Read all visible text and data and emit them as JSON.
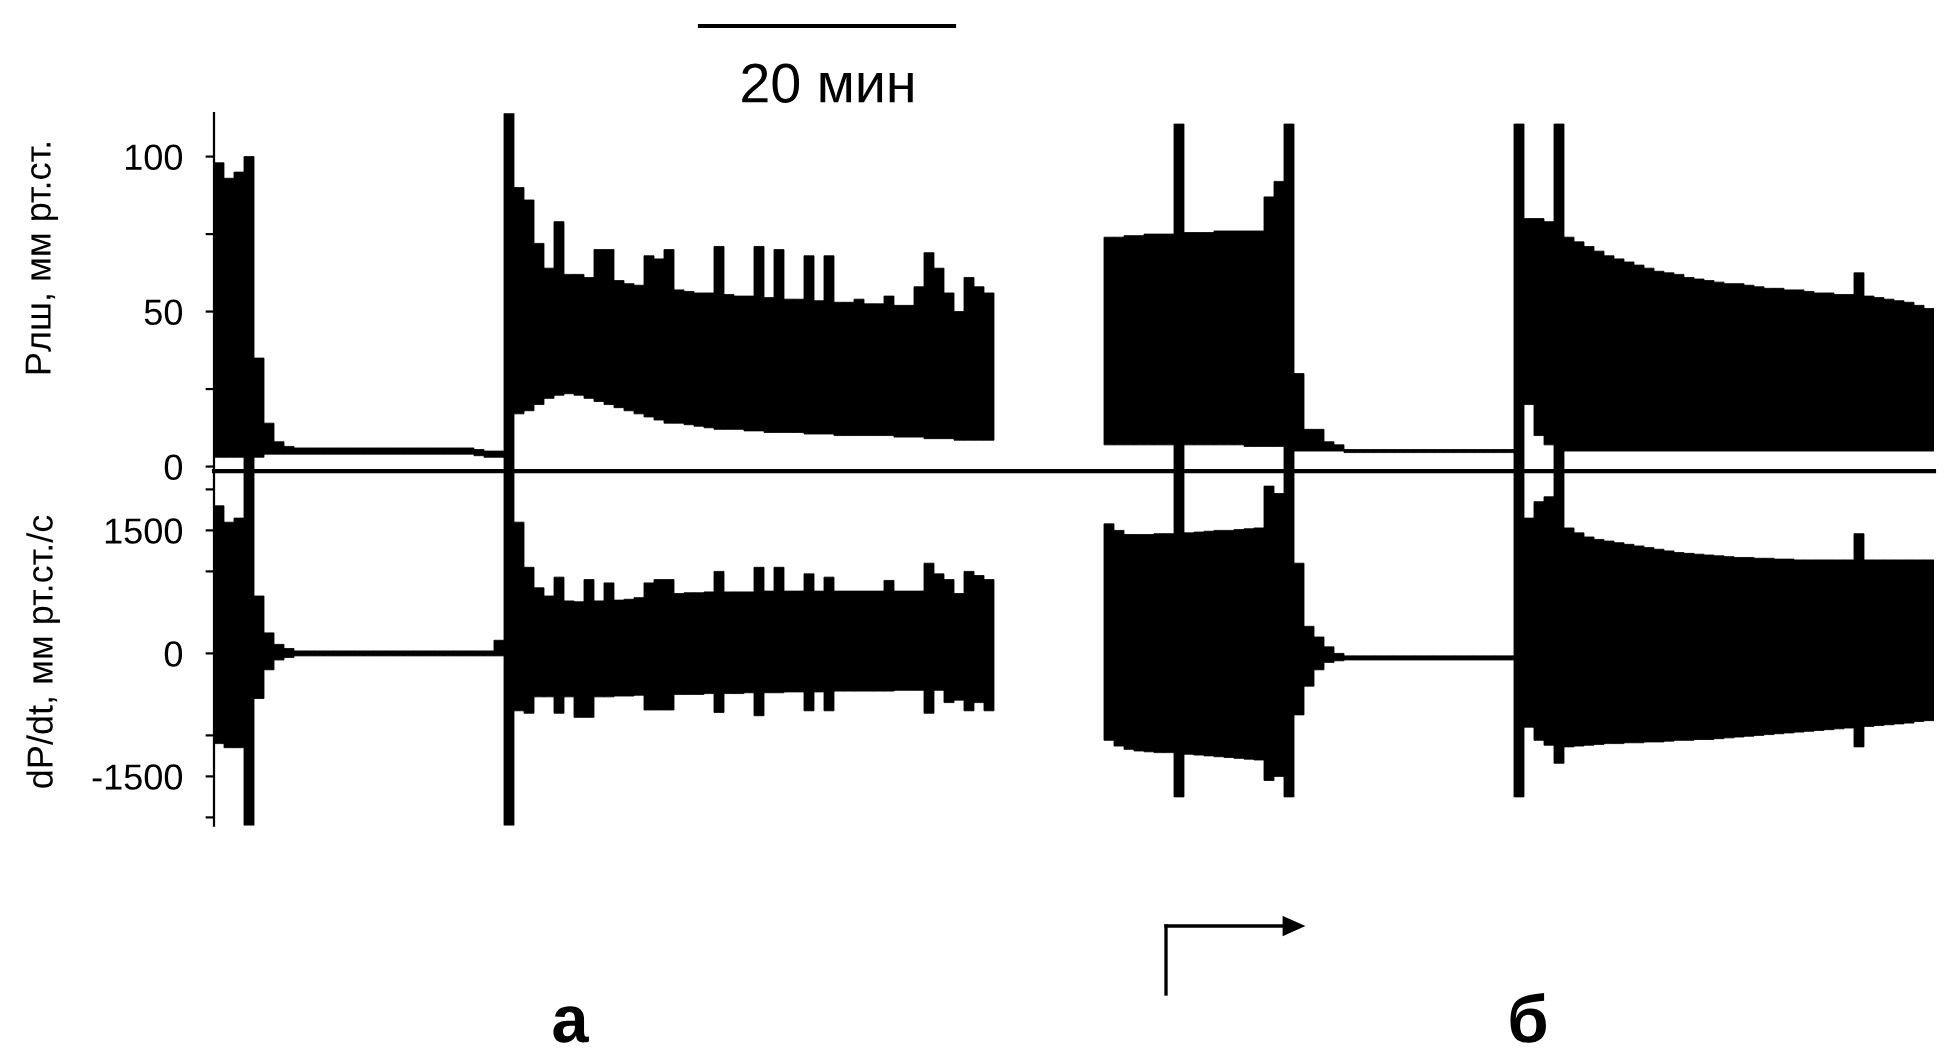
{
  "chart_data": [
    {
      "type": "bar",
      "ylabel": "Рлш, мм рт.ст.",
      "annotations": [
        "20 мин"
      ],
      "color": "#000000",
      "tick_labels": "y",
      "ylim": [
        -1.5,
        114
      ],
      "yticks": [
        0,
        {
          "value": 25,
          "label": null
        },
        50,
        {
          "value": 75,
          "label": null
        },
        100
      ],
      "categories": [
        null,
        null,
        null,
        null,
        null,
        null,
        null,
        null,
        null,
        null,
        null,
        null,
        null,
        null,
        null,
        null,
        null,
        null,
        null,
        null,
        null,
        null,
        null,
        null,
        null,
        null,
        null,
        null,
        null,
        null,
        null,
        null,
        null,
        null,
        null,
        null,
        null,
        null,
        null,
        null,
        null,
        null,
        null,
        null,
        null,
        null,
        null,
        null,
        null,
        null,
        null,
        null,
        null,
        null,
        null,
        null,
        null,
        null,
        null,
        null,
        null,
        null,
        null,
        null,
        null,
        null,
        null,
        null,
        null,
        null,
        null,
        null,
        null,
        null,
        null,
        null,
        null,
        null,
        null,
        null,
        null,
        null,
        null,
        null,
        null,
        null,
        null,
        null,
        null,
        null,
        null,
        null,
        null,
        null,
        null,
        null,
        null,
        null,
        null,
        null,
        null,
        null,
        null,
        null,
        null,
        null,
        null,
        null,
        null,
        null,
        null,
        null,
        null,
        null,
        null,
        null,
        null,
        null,
        null,
        null,
        null,
        null,
        null,
        null,
        null,
        null,
        null,
        null,
        null,
        null,
        null,
        null,
        null,
        null,
        null,
        null,
        null,
        null,
        null,
        null,
        null,
        null,
        null,
        null,
        null,
        null,
        null,
        null,
        null,
        null,
        null,
        null,
        null,
        null,
        null,
        null,
        null,
        null,
        null,
        null,
        null,
        null,
        null,
        null,
        null,
        null,
        null,
        null,
        null,
        null,
        null,
        null
      ],
      "base": [
        3,
        3,
        3,
        -1.5,
        3,
        4,
        4,
        4,
        4,
        4,
        4,
        4,
        4,
        4,
        4,
        4,
        4,
        4,
        4,
        4,
        4,
        4,
        4,
        4,
        4,
        4,
        3.5,
        3,
        3,
        -1.5,
        17,
        18,
        20,
        22,
        23,
        23.5,
        23,
        22,
        21,
        20,
        19,
        18,
        17,
        16,
        15,
        14,
        14,
        13.5,
        13,
        12.5,
        12,
        12,
        12,
        11.5,
        11.5,
        11,
        11,
        11,
        11,
        10.5,
        10.5,
        10.5,
        10,
        10,
        10,
        10,
        10,
        10,
        9.5,
        9.5,
        9.5,
        9,
        9,
        9,
        8.5,
        8.5,
        8.5,
        8.5,
        null,
        null,
        null,
        null,
        null,
        null,
        null,
        null,
        null,
        null,
        null,
        7,
        7,
        7,
        7,
        7,
        7,
        7,
        -1.5,
        7,
        7,
        7,
        7,
        7,
        7,
        6.5,
        6.5,
        6.5,
        6.5,
        -1.5,
        5,
        5,
        5,
        5,
        5,
        4.5,
        4.5,
        4.5,
        4.5,
        4.5,
        4.5,
        4.5,
        4.5,
        4.5,
        4.5,
        4.5,
        4.5,
        4.5,
        4.5,
        4.5,
        4.5,
        4.5,
        -1.5,
        20,
        10,
        7,
        -1.5,
        5,
        5,
        5,
        5,
        5,
        5,
        5,
        5,
        5,
        5,
        5,
        5,
        5,
        5,
        5,
        5,
        5,
        5,
        5,
        5,
        5,
        5,
        5,
        5,
        5,
        5,
        5,
        5,
        5,
        5,
        5,
        5,
        5,
        5,
        5,
        5,
        5
      ],
      "values": [
        95,
        90,
        92,
        101.5,
        32,
        10,
        4,
        2.5,
        2,
        2,
        2,
        2,
        2,
        2,
        2,
        2,
        2,
        2,
        2,
        2,
        2,
        2,
        2,
        2,
        2,
        2,
        2,
        2,
        2,
        115.5,
        73,
        68,
        52,
        42,
        56,
        38.5,
        39,
        39,
        49,
        50,
        41,
        41,
        41.5,
        52,
        52,
        56,
        43,
        43,
        43,
        43.5,
        59,
        43.5,
        43,
        43.5,
        59.5,
        43.5,
        59,
        43,
        43,
        57.5,
        43,
        57.5,
        43,
        43,
        44,
        42.5,
        42.5,
        45,
        42.5,
        42.5,
        48.5,
        60,
        55,
        47,
        41.5,
        52.5,
        49.5,
        47.5,
        null,
        null,
        null,
        null,
        null,
        null,
        null,
        null,
        null,
        null,
        null,
        67,
        67,
        67.5,
        67.5,
        68,
        68,
        68,
        112,
        68.5,
        68.5,
        68.5,
        69,
        69,
        69,
        69.5,
        69.5,
        80.5,
        85.5,
        112,
        25,
        7,
        7,
        3,
        2,
        1,
        1,
        1,
        1,
        1,
        1,
        1,
        1,
        1,
        1,
        1,
        1,
        1,
        1,
        1,
        1,
        1,
        112,
        60,
        70,
        72,
        112,
        69,
        67.5,
        66,
        64.5,
        63,
        62,
        61,
        60,
        59,
        58,
        57.5,
        57,
        56,
        55.5,
        55,
        54.5,
        54,
        54,
        53.5,
        53,
        52.5,
        52.5,
        52,
        52,
        51.5,
        51,
        51,
        50.5,
        50.5,
        57.5,
        50,
        49.5,
        49,
        48.5,
        48,
        47,
        46
      ]
    },
    {
      "type": "bar",
      "ylabel": "dP/dt, мм рт.ст./с",
      "annotations": [
        "а",
        "б"
      ],
      "color": "#000000",
      "tick_labels": "y",
      "ylim": [
        -2100,
        2200
      ],
      "yticks": [
        {
          "value": -2000,
          "label": null
        },
        -1500,
        {
          "value": -1000,
          "label": null
        },
        0,
        {
          "value": 1000,
          "label": null
        },
        1500,
        {
          "value": 2000,
          "label": null
        }
      ],
      "categories": [
        null,
        null,
        null,
        null,
        null,
        null,
        null,
        null,
        null,
        null,
        null,
        null,
        null,
        null,
        null,
        null,
        null,
        null,
        null,
        null,
        null,
        null,
        null,
        null,
        null,
        null,
        null,
        null,
        null,
        null,
        null,
        null,
        null,
        null,
        null,
        null,
        null,
        null,
        null,
        null,
        null,
        null,
        null,
        null,
        null,
        null,
        null,
        null,
        null,
        null,
        null,
        null,
        null,
        null,
        null,
        null,
        null,
        null,
        null,
        null,
        null,
        null,
        null,
        null,
        null,
        null,
        null,
        null,
        null,
        null,
        null,
        null,
        null,
        null,
        null,
        null,
        null,
        null,
        null,
        null,
        null,
        null,
        null,
        null,
        null,
        null,
        null,
        null,
        null,
        null,
        null,
        null,
        null,
        null,
        null,
        null,
        null,
        null,
        null,
        null,
        null,
        null,
        null,
        null,
        null,
        null,
        null,
        null,
        null,
        null,
        null,
        null,
        null,
        null,
        null,
        null,
        null,
        null,
        null,
        null,
        null,
        null,
        null,
        null,
        null,
        null,
        null,
        null,
        null,
        null,
        null,
        null,
        null,
        null,
        null,
        null,
        null,
        null,
        null,
        null,
        null,
        null,
        null,
        null,
        null,
        null,
        null,
        null,
        null,
        null,
        null,
        null,
        null,
        null,
        null,
        null,
        null,
        null,
        null,
        null,
        null,
        null,
        null,
        null,
        null,
        null,
        null,
        null,
        null,
        null,
        null,
        null
      ],
      "base": [
        -1100,
        -1150,
        -1150,
        -2100,
        -550,
        -200,
        -80,
        -50,
        -30,
        -30,
        -30,
        -30,
        -30,
        -30,
        -30,
        -30,
        -30,
        -30,
        -30,
        -30,
        -30,
        -30,
        -30,
        -30,
        -30,
        -30,
        -30,
        -30,
        -30,
        -2100,
        -700,
        -730,
        -530,
        -530,
        -730,
        -530,
        -780,
        -780,
        -530,
        -530,
        -520,
        -520,
        -510,
        -690,
        -690,
        -690,
        -500,
        -500,
        -500,
        -490,
        -720,
        -490,
        -490,
        -480,
        -760,
        -480,
        -480,
        -470,
        -470,
        -700,
        -470,
        -700,
        -460,
        -460,
        -460,
        -460,
        -460,
        -460,
        -450,
        -450,
        -450,
        -730,
        -450,
        -600,
        -570,
        -700,
        -600,
        -700,
        null,
        null,
        null,
        null,
        null,
        null,
        null,
        null,
        null,
        null,
        null,
        -1060,
        -1130,
        -1170,
        -1190,
        -1200,
        -1210,
        -1210,
        -1750,
        -1230,
        -1240,
        -1250,
        -1260,
        -1270,
        -1280,
        -1290,
        -1300,
        -1550,
        -1500,
        -1750,
        -750,
        -400,
        -200,
        -110,
        -90,
        -80,
        -80,
        -80,
        -80,
        -80,
        -80,
        -80,
        -80,
        -80,
        -80,
        -80,
        -80,
        -80,
        -80,
        -80,
        -80,
        -80,
        -1750,
        -900,
        -1060,
        -1120,
        -1340,
        -1140,
        -1130,
        -1120,
        -1110,
        -1100,
        -1100,
        -1090,
        -1090,
        -1080,
        -1080,
        -1070,
        -1060,
        -1060,
        -1050,
        -1050,
        -1040,
        -1030,
        -1020,
        -1010,
        -1000,
        -990,
        -980,
        -970,
        -960,
        -950,
        -940,
        -930,
        -920,
        -910,
        -1140,
        -890,
        -880,
        -870,
        -860,
        -850,
        -830,
        -820
      ],
      "values": [
        2900,
        2750,
        2800,
        4300,
        1250,
        450,
        190,
        110,
        60,
        60,
        60,
        60,
        60,
        60,
        60,
        60,
        60,
        60,
        60,
        60,
        60,
        60,
        60,
        60,
        60,
        60,
        60,
        60,
        190,
        4300,
        2300,
        1780,
        1330,
        1230,
        1660,
        1170,
        1410,
        1680,
        1170,
        1390,
        1170,
        1180,
        1190,
        1550,
        1590,
        1590,
        1230,
        1240,
        1240,
        1240,
        1720,
        1240,
        1240,
        1230,
        1810,
        1240,
        1530,
        1230,
        1230,
        1670,
        1230,
        1630,
        1220,
        1220,
        1220,
        1220,
        1220,
        1350,
        1210,
        1210,
        1210,
        1830,
        1420,
        1500,
        1300,
        1700,
        1550,
        1600,
        null,
        null,
        null,
        null,
        null,
        null,
        null,
        null,
        null,
        null,
        null,
        2640,
        2630,
        2620,
        2640,
        2650,
        2670,
        2670,
        3950,
        2700,
        2720,
        2740,
        2760,
        2770,
        2790,
        2810,
        2830,
        3590,
        3450,
        3950,
        1850,
        730,
        400,
        190,
        90,
        50,
        50,
        50,
        50,
        50,
        50,
        50,
        50,
        50,
        50,
        50,
        50,
        50,
        50,
        50,
        50,
        50,
        3950,
        2550,
        2910,
        3030,
        3540,
        2670,
        2600,
        2540,
        2500,
        2470,
        2450,
        2420,
        2400,
        2370,
        2350,
        2320,
        2290,
        2280,
        2260,
        2250,
        2230,
        2210,
        2190,
        2180,
        2160,
        2150,
        2130,
        2120,
        2100,
        2090,
        2080,
        2070,
        2060,
        2050,
        2600,
        2030,
        2020,
        2010,
        2000,
        1990,
        1970,
        1960
      ]
    }
  ]
}
